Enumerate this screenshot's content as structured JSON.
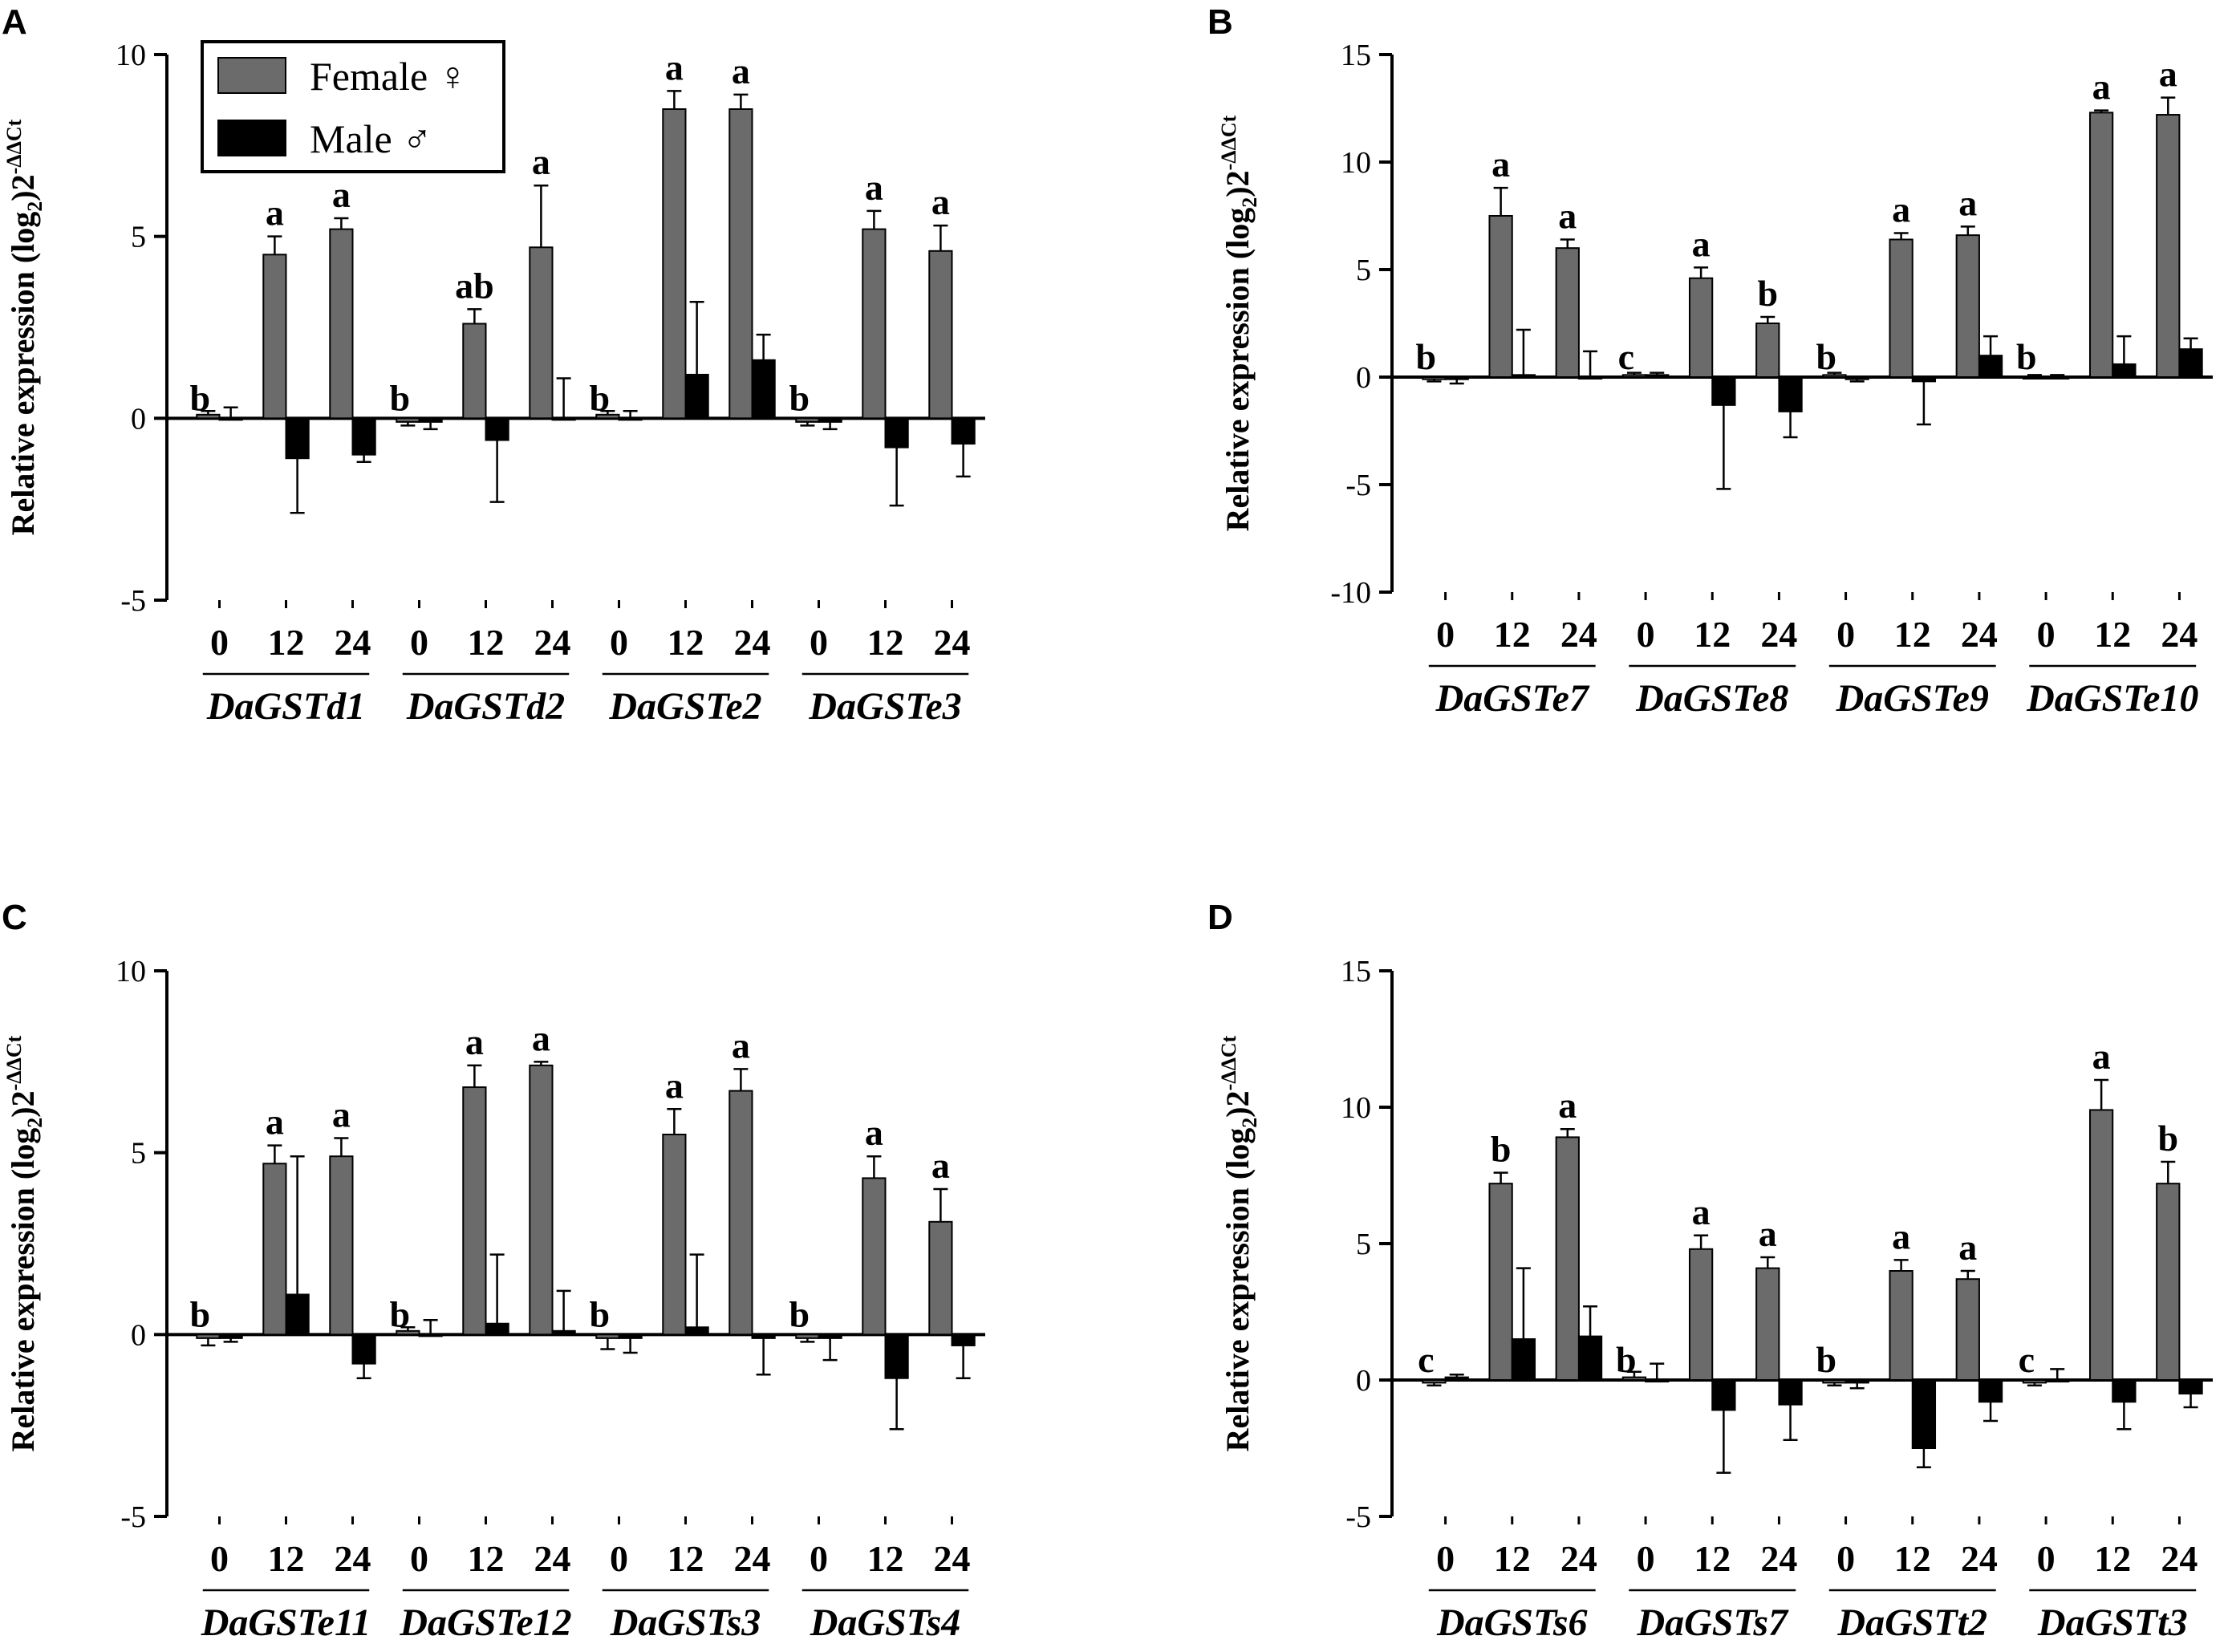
{
  "colors": {
    "female": "#6b6b6b",
    "male": "#000000",
    "axis": "#000000"
  },
  "y_label": "Relative expression (log",
  "y_label_sub": "2",
  "y_label_base": ")2",
  "y_label_sup": "-ΔΔCt",
  "legend": {
    "female": "Female ♀",
    "male": "Male ♂"
  },
  "chart_data": [
    {
      "panel": "A",
      "type": "bar",
      "ylim": [
        -5,
        10
      ],
      "yticks": [
        -5,
        0,
        5,
        10
      ],
      "timepoints": [
        "0",
        "12",
        "24"
      ],
      "genes": [
        {
          "name": "DaGSTd1",
          "female": [
            0.1,
            4.5,
            5.2
          ],
          "female_err": [
            0.1,
            0.5,
            0.3
          ],
          "male": [
            0.0,
            -1.1,
            -1.0
          ],
          "male_err": [
            0.3,
            1.5,
            0.2
          ],
          "labels": [
            "b",
            "a",
            "a"
          ]
        },
        {
          "name": "DaGSTd2",
          "female": [
            -0.1,
            2.6,
            4.7
          ],
          "female_err": [
            0.1,
            0.4,
            1.7
          ],
          "male": [
            -0.1,
            -0.6,
            0.0
          ],
          "male_err": [
            0.2,
            1.7,
            1.1
          ],
          "labels": [
            "b",
            "ab",
            "a"
          ]
        },
        {
          "name": "DaGSTe2",
          "female": [
            0.1,
            8.5,
            8.5
          ],
          "female_err": [
            0.1,
            0.5,
            0.4
          ],
          "male": [
            0.0,
            1.2,
            1.6
          ],
          "male_err": [
            0.2,
            2.0,
            0.7
          ],
          "labels": [
            "b",
            "a",
            "a"
          ]
        },
        {
          "name": "DaGSTe3",
          "female": [
            -0.1,
            5.2,
            4.6
          ],
          "female_err": [
            0.1,
            0.5,
            0.7
          ],
          "male": [
            -0.1,
            -0.8,
            -0.7
          ],
          "male_err": [
            0.2,
            1.6,
            0.9
          ],
          "labels": [
            "b",
            "a",
            "a"
          ]
        }
      ]
    },
    {
      "panel": "B",
      "type": "bar",
      "ylim": [
        -10,
        15
      ],
      "yticks": [
        -10,
        -5,
        0,
        5,
        10,
        15
      ],
      "timepoints": [
        "0",
        "12",
        "24"
      ],
      "genes": [
        {
          "name": "DaGSTe7",
          "female": [
            -0.1,
            7.5,
            6.0
          ],
          "female_err": [
            0.1,
            1.3,
            0.4
          ],
          "male": [
            -0.1,
            0.1,
            0.0
          ],
          "male_err": [
            0.2,
            2.1,
            1.2
          ],
          "labels": [
            "b",
            "a",
            "a"
          ]
        },
        {
          "name": "DaGSTe8",
          "female": [
            0.1,
            4.6,
            2.5
          ],
          "female_err": [
            0.1,
            0.5,
            0.3
          ],
          "male": [
            0.1,
            -1.3,
            -1.6
          ],
          "male_err": [
            0.1,
            3.9,
            1.2
          ],
          "labels": [
            "c",
            "a",
            "b"
          ]
        },
        {
          "name": "DaGSTe9",
          "female": [
            0.1,
            6.4,
            6.6
          ],
          "female_err": [
            0.1,
            0.3,
            0.4
          ],
          "male": [
            -0.1,
            -0.2,
            1.0
          ],
          "male_err": [
            0.1,
            2.0,
            0.9
          ],
          "labels": [
            "b",
            "a",
            "a"
          ]
        },
        {
          "name": "DaGSTe10",
          "female": [
            0.0,
            12.3,
            12.2
          ],
          "female_err": [
            0.1,
            0.1,
            0.8
          ],
          "male": [
            0.0,
            0.6,
            1.3
          ],
          "male_err": [
            0.1,
            1.3,
            0.5
          ],
          "labels": [
            "b",
            "a",
            "a"
          ]
        }
      ]
    },
    {
      "panel": "C",
      "type": "bar",
      "ylim": [
        -5,
        10
      ],
      "yticks": [
        -5,
        0,
        5,
        10
      ],
      "timepoints": [
        "0",
        "12",
        "24"
      ],
      "genes": [
        {
          "name": "DaGSTe11",
          "female": [
            -0.1,
            4.7,
            4.9
          ],
          "female_err": [
            0.2,
            0.5,
            0.5
          ],
          "male": [
            -0.1,
            1.1,
            -0.8
          ],
          "male_err": [
            0.1,
            3.8,
            0.4
          ],
          "labels": [
            "b",
            "a",
            "a"
          ]
        },
        {
          "name": "DaGSTe12",
          "female": [
            0.1,
            6.8,
            7.4
          ],
          "female_err": [
            0.1,
            0.6,
            0.1
          ],
          "male": [
            0.0,
            0.3,
            0.1
          ],
          "male_err": [
            0.4,
            1.9,
            1.1
          ],
          "labels": [
            "b",
            "a",
            "a"
          ]
        },
        {
          "name": "DaGSTs3",
          "female": [
            -0.1,
            5.5,
            6.7
          ],
          "female_err": [
            0.3,
            0.7,
            0.6
          ],
          "male": [
            -0.1,
            0.2,
            -0.1
          ],
          "male_err": [
            0.4,
            2.0,
            1.0
          ],
          "labels": [
            "b",
            "a",
            "a"
          ]
        },
        {
          "name": "DaGSTs4",
          "female": [
            -0.1,
            4.3,
            3.1
          ],
          "female_err": [
            0.1,
            0.6,
            0.9
          ],
          "male": [
            -0.1,
            -1.2,
            -0.3
          ],
          "male_err": [
            0.6,
            1.4,
            0.9
          ],
          "labels": [
            "b",
            "a",
            "a"
          ]
        }
      ]
    },
    {
      "panel": "D",
      "type": "bar",
      "ylim": [
        -5,
        15
      ],
      "yticks": [
        -5,
        0,
        5,
        10,
        15
      ],
      "timepoints": [
        "0",
        "12",
        "24"
      ],
      "genes": [
        {
          "name": "DaGSTs6",
          "female": [
            -0.1,
            7.2,
            8.9
          ],
          "female_err": [
            0.1,
            0.4,
            0.3
          ],
          "male": [
            0.1,
            1.5,
            1.6
          ],
          "male_err": [
            0.1,
            2.6,
            1.1
          ],
          "labels": [
            "c",
            "b",
            "a"
          ]
        },
        {
          "name": "DaGSTs7",
          "female": [
            0.1,
            4.8,
            4.1
          ],
          "female_err": [
            0.2,
            0.5,
            0.4
          ],
          "male": [
            0.0,
            -1.1,
            -0.9
          ],
          "male_err": [
            0.6,
            2.3,
            1.3
          ],
          "labels": [
            "b",
            "a",
            "a"
          ]
        },
        {
          "name": "DaGSTt2",
          "female": [
            -0.1,
            4.0,
            3.7
          ],
          "female_err": [
            0.1,
            0.4,
            0.3
          ],
          "male": [
            -0.1,
            -2.5,
            -0.8
          ],
          "male_err": [
            0.2,
            0.7,
            0.7
          ],
          "labels": [
            "b",
            "a",
            "a"
          ]
        },
        {
          "name": "DaGSTt3",
          "female": [
            -0.1,
            9.9,
            7.2
          ],
          "female_err": [
            0.1,
            1.1,
            0.8
          ],
          "male": [
            0.0,
            -0.8,
            -0.5
          ],
          "male_err": [
            0.4,
            1.0,
            0.5
          ],
          "labels": [
            "c",
            "a",
            "b"
          ]
        }
      ]
    }
  ]
}
